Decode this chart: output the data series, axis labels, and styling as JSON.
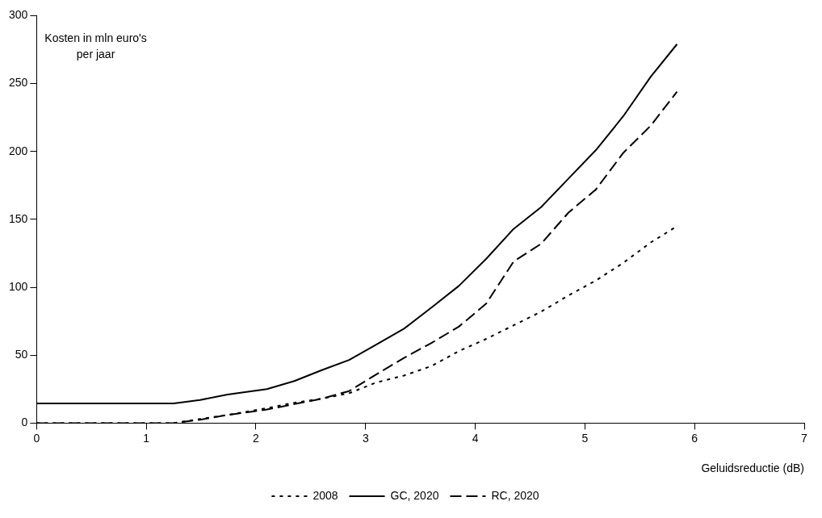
{
  "chart_data": {
    "type": "line",
    "ylabel": "Kosten in mln euro's per jaar",
    "xlabel": "Geluidsreductie (dB)",
    "x": [
      0,
      1.25,
      1.49,
      1.74,
      2.1,
      2.35,
      2.6,
      2.85,
      3.1,
      3.35,
      3.6,
      3.85,
      4.1,
      4.35,
      4.6,
      4.85,
      5.1,
      5.35,
      5.6,
      5.84
    ],
    "series": [
      {
        "name": "2008",
        "color": "#000000",
        "line_style": "dotted",
        "values": [
          0,
          0,
          3,
          6,
          11,
          15,
          18,
          22,
          30,
          35,
          42,
          53,
          62,
          72,
          82,
          94,
          105,
          118,
          133,
          145
        ]
      },
      {
        "name": "GC, 2020",
        "color": "#000000",
        "line_style": "solid",
        "values": [
          14.5,
          14.5,
          17,
          21,
          25,
          31,
          39,
          46.5,
          58,
          69.5,
          85,
          101,
          121,
          143,
          159,
          180,
          201,
          226,
          255,
          279
        ]
      },
      {
        "name": "RC, 2020",
        "color": "#000000",
        "line_style": "dashed",
        "values": [
          0,
          0,
          2.5,
          6,
          10,
          14,
          18,
          23.6,
          36,
          48,
          59,
          71,
          88,
          119,
          132,
          155,
          172,
          199,
          219,
          244
        ]
      }
    ],
    "xlim": [
      0,
      7
    ],
    "xticks": [
      0,
      1,
      2,
      3,
      4,
      5,
      6,
      7
    ],
    "ylim": [
      0,
      300
    ],
    "yticks": [
      0,
      50,
      100,
      150,
      200,
      250,
      300
    ],
    "grid": false,
    "legend": "bottom",
    "marker": "none"
  }
}
